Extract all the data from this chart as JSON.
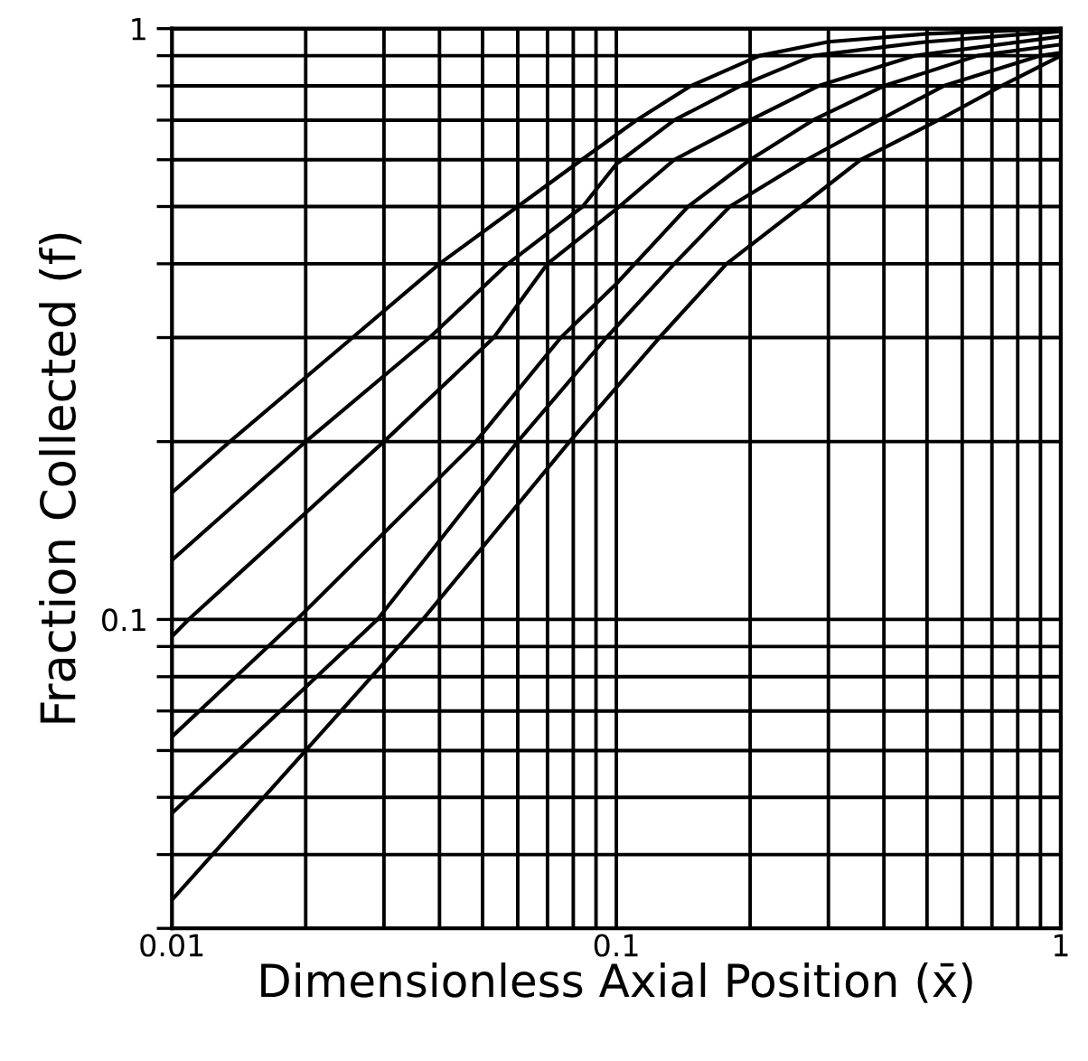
{
  "chart_data": {
    "type": "line",
    "xlabel": "Dimensionless Axial Position (x̄)",
    "ylabel": "Fraction Collected (f)",
    "log": "xy",
    "grid": true,
    "marker": "none",
    "line_style": "solid",
    "xlim": [
      0.01,
      1
    ],
    "ylim": [
      0.03,
      1
    ],
    "xticks": [
      0.01,
      {
        "value": 0.02,
        "label": null
      },
      {
        "value": 0.03,
        "label": null
      },
      {
        "value": 0.04,
        "label": null
      },
      {
        "value": 0.05,
        "label": null
      },
      {
        "value": 0.06,
        "label": null
      },
      {
        "value": 0.07,
        "label": null
      },
      {
        "value": 0.08,
        "label": null
      },
      {
        "value": 0.09,
        "label": null
      },
      0.1,
      {
        "value": 0.2,
        "label": null
      },
      {
        "value": 0.3,
        "label": null
      },
      {
        "value": 0.4,
        "label": null
      },
      {
        "value": 0.5,
        "label": null
      },
      {
        "value": 0.6,
        "label": null
      },
      {
        "value": 0.7,
        "label": null
      },
      {
        "value": 0.8,
        "label": null
      },
      {
        "value": 0.9,
        "label": null
      },
      1
    ],
    "yticks": [
      {
        "value": 0.03,
        "label": null
      },
      {
        "value": 0.04,
        "label": null
      },
      {
        "value": 0.05,
        "label": null
      },
      {
        "value": 0.06,
        "label": null
      },
      {
        "value": 0.07,
        "label": null
      },
      {
        "value": 0.08,
        "label": null
      },
      {
        "value": 0.09,
        "label": null
      },
      0.1,
      {
        "value": 0.2,
        "label": null
      },
      {
        "value": 0.3,
        "label": null
      },
      {
        "value": 0.4,
        "label": null
      },
      {
        "value": 0.5,
        "label": null
      },
      {
        "value": 0.6,
        "label": null
      },
      {
        "value": 0.7,
        "label": null
      },
      {
        "value": 0.8,
        "label": null
      },
      {
        "value": 0.9,
        "label": null
      },
      1
    ],
    "series": [
      {
        "color": "#000000",
        "x": [
          0.01,
          0.0135,
          0.0255,
          0.04,
          0.06,
          0.0836,
          0.111,
          0.147,
          0.21,
          0.3,
          0.5,
          1
        ],
        "values": [
          0.164,
          0.2,
          0.3,
          0.4,
          0.5,
          0.6,
          0.7,
          0.8,
          0.9,
          0.95,
          0.98,
          1.0
        ]
      },
      {
        "color": "#000000",
        "x": [
          0.01,
          0.02,
          0.038,
          0.057,
          0.084,
          0.1,
          0.135,
          0.19,
          0.277,
          0.5,
          1
        ],
        "values": [
          0.126,
          0.2,
          0.3,
          0.4,
          0.5,
          0.59,
          0.7,
          0.8,
          0.9,
          0.95,
          0.99
        ]
      },
      {
        "color": "#000000",
        "x": [
          0.01,
          0.0109,
          0.03,
          0.053,
          0.07,
          0.1,
          0.135,
          0.2,
          0.285,
          0.47,
          1
        ],
        "values": [
          0.0936,
          0.1,
          0.2,
          0.3,
          0.4,
          0.495,
          0.6,
          0.7,
          0.8,
          0.9,
          0.97
        ]
      },
      {
        "color": "#000000",
        "x": [
          0.01,
          0.0191,
          0.0483,
          0.075,
          0.1,
          0.145,
          0.2,
          0.277,
          0.4,
          0.65,
          1
        ],
        "values": [
          0.0633,
          0.1,
          0.2,
          0.3,
          0.37,
          0.5,
          0.6,
          0.7,
          0.8,
          0.9,
          0.94
        ]
      },
      {
        "color": "#000000",
        "x": [
          0.01,
          0.029,
          0.06,
          0.095,
          0.135,
          0.18,
          0.268,
          0.39,
          0.545,
          0.9,
          1
        ],
        "values": [
          0.047,
          0.1,
          0.2,
          0.3,
          0.4,
          0.5,
          0.6,
          0.7,
          0.8,
          0.9,
          0.91
        ]
      },
      {
        "color": "#000000",
        "x": [
          0.01,
          0.0367,
          0.0785,
          0.125,
          0.177,
          0.26,
          0.355,
          0.53,
          0.735,
          1
        ],
        "values": [
          0.0335,
          0.1,
          0.2,
          0.3,
          0.4,
          0.5,
          0.6,
          0.7,
          0.8,
          0.9
        ]
      }
    ]
  }
}
